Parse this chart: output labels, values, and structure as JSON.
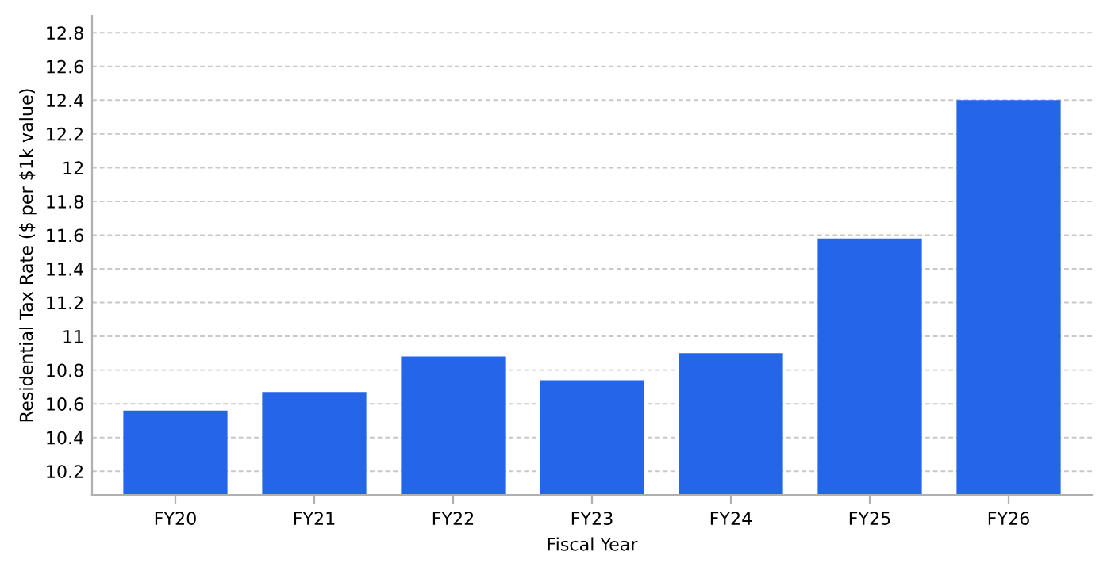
{
  "chart_data": {
    "type": "bar",
    "xlabel": "Fiscal Year",
    "ylabel": "Residential Tax Rate ($ per $1k value)",
    "categories": [
      "FY20",
      "FY21",
      "FY22",
      "FY23",
      "FY24",
      "FY25",
      "FY26"
    ],
    "values": [
      10.56,
      10.67,
      10.88,
      10.74,
      10.9,
      11.58,
      12.4
    ],
    "color": "#2565e8",
    "ylim": [
      10.06,
      12.9
    ],
    "yticks": [
      {
        "value": 10.2,
        "label": "10.2"
      },
      {
        "value": 10.4,
        "label": "10.4"
      },
      {
        "value": 10.6,
        "label": "10.6"
      },
      {
        "value": 10.8,
        "label": "10.8"
      },
      11,
      {
        "value": 11.2,
        "label": "11.2"
      },
      {
        "value": 11.4,
        "label": "11.4"
      },
      {
        "value": 11.6,
        "label": "11.6"
      },
      {
        "value": 11.8,
        "label": "11.8"
      },
      12,
      {
        "value": 12.2,
        "label": "12.2"
      },
      {
        "value": 12.4,
        "label": "12.4"
      },
      {
        "value": 12.6,
        "label": "12.6"
      },
      {
        "value": 12.8,
        "label": "12.8"
      }
    ],
    "grid": "y"
  }
}
